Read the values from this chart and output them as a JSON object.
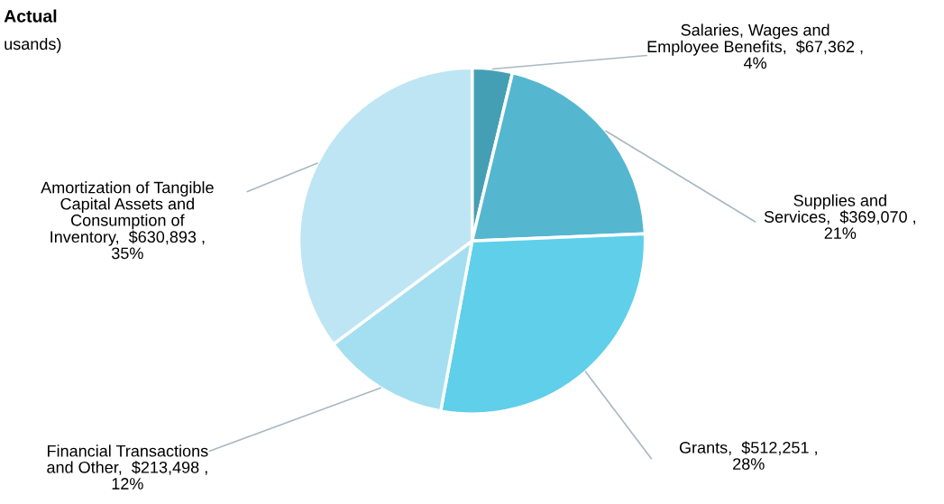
{
  "chart_data": {
    "type": "pie",
    "title": "Actual",
    "subtitle": "usands)",
    "categories": [
      "Salaries, Wages and\nEmployee Benefits",
      "Supplies and\nServices",
      "Grants",
      "Financial Transactions\nand Other",
      "Amortization of Tangible\nCapital Assets and\nConsumption of\nInventory"
    ],
    "values": [
      67362,
      369070,
      512251,
      213498,
      630893
    ],
    "value_labels": [
      "$67,362 ,\n4%",
      "$369,070 ,\n21%",
      "$512,251 ,\n28%",
      "$213,498 ,\n12%",
      "$630,893 ,\n35%"
    ],
    "colors": [
      "#459fb4",
      "#55b6d0",
      "#5fcfea",
      "#a3dff0",
      "#bee5f4"
    ],
    "legend": false
  }
}
